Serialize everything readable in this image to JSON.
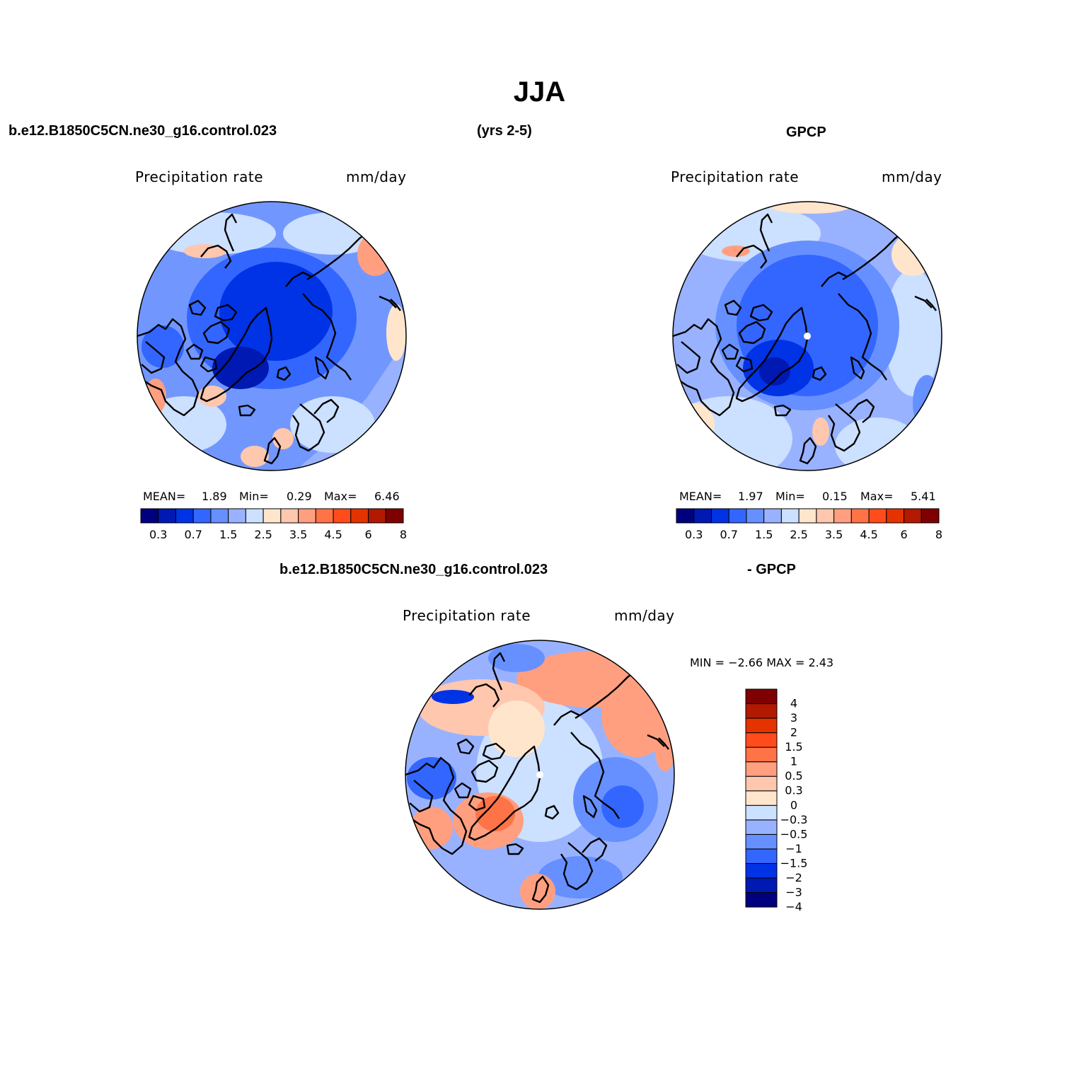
{
  "title": "JJA",
  "header": {
    "case": "b.e12.B1850C5CN.ne30_g16.control.023",
    "years": "(yrs 2-5)",
    "obs": "GPCP",
    "diff_case": "b.e12.B1850C5CN.ne30_g16.control.023",
    "diff_obs": "- GPCP"
  },
  "panels": [
    {
      "id": "model",
      "variable": "Precipitation  rate",
      "units": "mm/day",
      "mean_label": "MEAN=",
      "mean": "1.89",
      "min_label": "Min=",
      "min": "0.29",
      "max_label": "Max=",
      "max": "6.46",
      "fill_level": 0.35
    },
    {
      "id": "gpcp",
      "variable": "Precipitation  rate",
      "units": "mm/day",
      "mean_label": "MEAN=",
      "mean": "1.97",
      "min_label": "Min=",
      "min": "0.15",
      "max_label": "Max=",
      "max": "5.41",
      "fill_level": 0.32
    },
    {
      "id": "difference",
      "variable": "Precipitation  rate",
      "units": "mm/day",
      "minmax_text": "MIN =   −2.66 MAX =    2.43",
      "fill_level": 0.5
    }
  ],
  "colorbar_abs": {
    "colors": [
      "#00007f",
      "#0019b2",
      "#0033e5",
      "#3366ff",
      "#6690ff",
      "#99b2ff",
      "#cce0ff",
      "#ffe5cc",
      "#ffc7ae",
      "#ff9f80",
      "#ff7347",
      "#ff4c1a",
      "#e53300",
      "#b21900",
      "#7f0000"
    ],
    "tick_labels": [
      "0.3",
      "0.7",
      "1.5",
      "2.5",
      "3.5",
      "4.5",
      "6",
      "8"
    ]
  },
  "colorbar_diff": {
    "colors": [
      "#00007f",
      "#0019b2",
      "#0033e5",
      "#3366ff",
      "#6690ff",
      "#99b2ff",
      "#cce0ff",
      "#ffe5cc",
      "#ffc7ae",
      "#ff9f80",
      "#ff7347",
      "#ff4c1a",
      "#e53300",
      "#b21900",
      "#7f0000"
    ],
    "tick_labels": [
      "4",
      "3",
      "2",
      "1.5",
      "1",
      "0.5",
      "0.3",
      "0",
      "−0.3",
      "−0.5",
      "−1",
      "−1.5",
      "−2",
      "−3",
      "−4"
    ]
  }
}
